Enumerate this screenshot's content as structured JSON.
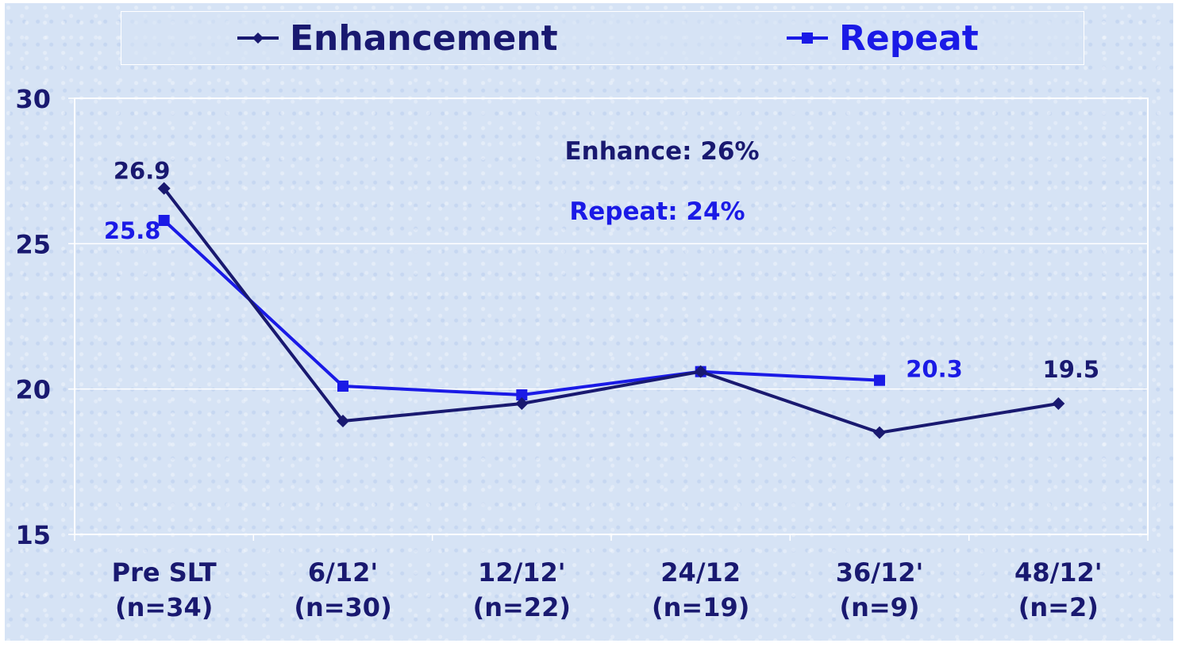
{
  "chart_data": {
    "type": "line",
    "categories": [
      "Pre SLT (n=34)",
      "6/12' (n=30)",
      "12/12' (n=22)",
      "24/12 (n=19)",
      "36/12' (n=9)",
      "48/12' (n=2)"
    ],
    "category_lines": [
      [
        "Pre SLT",
        "(n=34)"
      ],
      [
        "6/12'",
        "(n=30)"
      ],
      [
        "12/12'",
        "(n=22)"
      ],
      [
        "24/12",
        "(n=19)"
      ],
      [
        "36/12'",
        "(n=9)"
      ],
      [
        "48/12'",
        "(n=2)"
      ]
    ],
    "series": [
      {
        "name": "Enhancement",
        "color": "#191970",
        "marker": "diamond",
        "values": [
          26.9,
          18.9,
          19.5,
          20.6,
          18.5,
          19.5
        ],
        "data_labels": [
          "26.9",
          null,
          null,
          null,
          null,
          "19.5"
        ]
      },
      {
        "name": "Repeat",
        "color": "#1a1ae6",
        "marker": "square",
        "values": [
          25.8,
          20.1,
          19.8,
          20.6,
          20.3,
          null
        ],
        "data_labels": [
          "25.8",
          null,
          null,
          null,
          "20.3",
          null
        ]
      }
    ],
    "ylim": [
      15,
      30
    ],
    "yticks": [
      "15",
      "20",
      "25",
      "30"
    ],
    "grid": "horizontal",
    "legend_position": "top",
    "annotations": [
      {
        "text": "Enhance: 26%",
        "color": "#191970"
      },
      {
        "text": "Repeat: 24%",
        "color": "#1a1ae6"
      }
    ]
  }
}
